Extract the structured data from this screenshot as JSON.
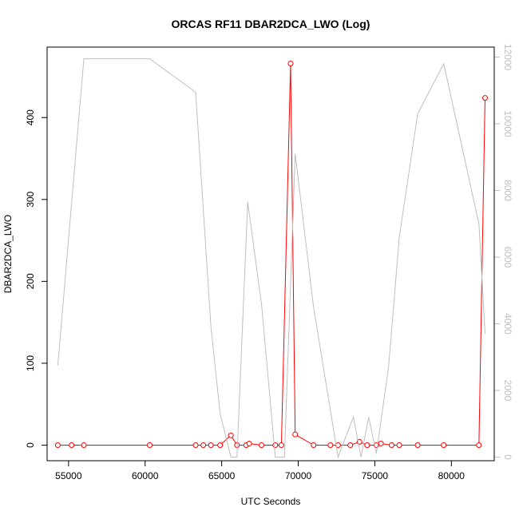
{
  "chart_data": {
    "type": "line",
    "title": "ORCAS RF11 DBAR2DCA_LWO (Log)",
    "xlabel": "UTC Seconds",
    "ylabel": "DBAR2DCA_LWO",
    "xlim": [
      53600,
      82800
    ],
    "ylim": [
      -19,
      486
    ],
    "y2lim": [
      -110,
      12300
    ],
    "x_ticks": [
      55000,
      60000,
      65000,
      70000,
      75000,
      80000
    ],
    "y_ticks": [
      0,
      100,
      200,
      300,
      400
    ],
    "y2_ticks": [
      0,
      2000,
      4000,
      6000,
      8000,
      10000,
      12000
    ],
    "x_tick_labels": [
      "55000",
      "60000",
      "65000",
      "70000",
      "75000",
      "80000"
    ],
    "y_tick_labels": [
      "0",
      "100",
      "200",
      "300",
      "400"
    ],
    "y2_tick_labels": [
      "0",
      "2000",
      "4000",
      "6000",
      "8000",
      "10000",
      "12000"
    ],
    "colors": {
      "primary": "#ff0000",
      "secondary": "#bebebe",
      "axis": "#000000"
    },
    "series": [
      {
        "axis": "left",
        "style": "line+points",
        "color": "#ff0000",
        "x": [
          54300,
          55200,
          56000,
          60300,
          63300,
          63800,
          64300,
          64900,
          65600,
          66000,
          66600,
          66800,
          67600,
          68500,
          68900,
          69500,
          69800,
          71000,
          72100,
          72600,
          73400,
          74000,
          74500,
          75100,
          75400,
          76100,
          76600,
          77800,
          79500,
          81800,
          82200
        ],
        "y": [
          0,
          0,
          0,
          0,
          0,
          0,
          0,
          0,
          12,
          0,
          0,
          2,
          0,
          0,
          0,
          466,
          13,
          0,
          0,
          0,
          0,
          4,
          0,
          0,
          2,
          0,
          0,
          0,
          0,
          0,
          424
        ]
      },
      {
        "axis": "right",
        "style": "line",
        "color": "#bebebe",
        "x": [
          54300,
          56000,
          60300,
          63300,
          64300,
          64900,
          65600,
          66000,
          66700,
          67600,
          68500,
          69100,
          69800,
          71000,
          72600,
          73600,
          74100,
          74600,
          75100,
          75900,
          76600,
          77800,
          79500,
          81800,
          82200
        ],
        "y": [
          2750,
          11950,
          11950,
          10950,
          3900,
          1300,
          0,
          0,
          7650,
          4600,
          0,
          0,
          9100,
          4500,
          0,
          1200,
          0,
          1200,
          100,
          2700,
          6600,
          10300,
          11800,
          7000,
          3700
        ]
      }
    ]
  }
}
